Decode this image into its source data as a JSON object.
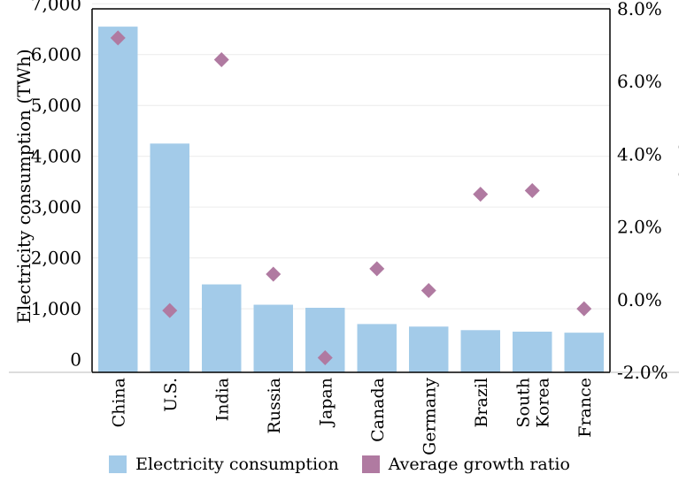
{
  "chart_data": {
    "type": "bar",
    "categories": [
      "China",
      "U.S.",
      "India",
      "Russia",
      "Japan",
      "Canada",
      "Germany",
      "Brazil",
      "South Korea",
      "France"
    ],
    "category_lines": [
      [
        "China"
      ],
      [
        "U.S."
      ],
      [
        "India"
      ],
      [
        "Russia"
      ],
      [
        "Japan"
      ],
      [
        "Canada"
      ],
      [
        "Germany"
      ],
      [
        "Brazil"
      ],
      [
        "South",
        "Korea"
      ],
      [
        "France"
      ]
    ],
    "series": [
      {
        "name": "Electricity consumption",
        "type": "bar",
        "axis": "left",
        "color": "#a3cbe9",
        "values": [
          6550,
          4250,
          1480,
          1080,
          1020,
          700,
          650,
          580,
          550,
          530
        ]
      },
      {
        "name": "Average growth ratio",
        "type": "scatter",
        "axis": "right",
        "color": "#b07aa1",
        "values": [
          7.2,
          -0.3,
          6.6,
          0.7,
          -1.6,
          0.85,
          0.25,
          2.9,
          3.0,
          -0.25
        ]
      }
    ],
    "ylabel": "Electricity consumption (TWh)",
    "y2label": "Average growth ratio",
    "ylim": [
      -250,
      6900
    ],
    "yticks": [
      0,
      1000,
      2000,
      3000,
      4000,
      5000,
      6000,
      7000
    ],
    "ytick_labels": [
      "0",
      "1,000",
      "2,000",
      "3,000",
      "4,000",
      "5,000",
      "6,000",
      "7,000"
    ],
    "y2lim": [
      -2.0,
      8.0
    ],
    "y2ticks": [
      -2.0,
      0.0,
      2.0,
      4.0,
      6.0,
      8.0
    ],
    "y2tick_labels": [
      "-2.0%",
      "0.0%",
      "2.0%",
      "4.0%",
      "6.0%",
      "8.0%"
    ],
    "grid": true,
    "legend_position": "bottom-center"
  }
}
